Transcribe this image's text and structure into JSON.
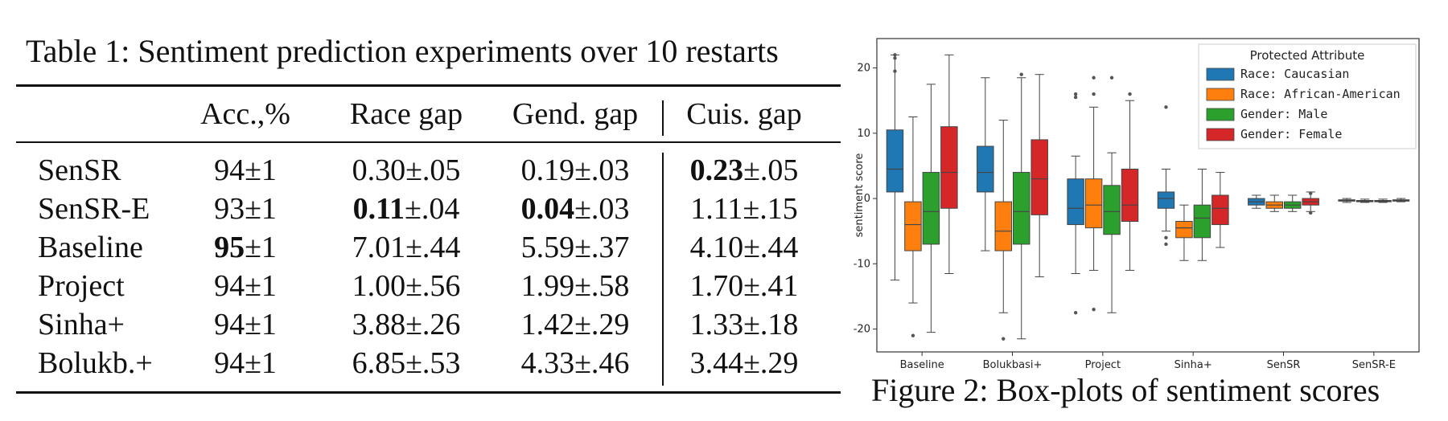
{
  "table": {
    "caption": "Table 1: Sentiment prediction experiments over 10 restarts",
    "headers": [
      "",
      "Acc.,%",
      "Race gap",
      "Gend. gap",
      "Cuis. gap"
    ],
    "rows": [
      {
        "method": "SenSR",
        "acc": {
          "b": "",
          "r": "94±1"
        },
        "race": {
          "b": "",
          "r": "0.30±.05"
        },
        "gend": {
          "b": "",
          "r": "0.19±.03"
        },
        "cuis": {
          "b": "0.23",
          "r": "±.05"
        }
      },
      {
        "method": "SenSR-E",
        "acc": {
          "b": "",
          "r": "93±1"
        },
        "race": {
          "b": "0.11",
          "r": "±.04"
        },
        "gend": {
          "b": "0.04",
          "r": "±.03"
        },
        "cuis": {
          "b": "",
          "r": "1.11±.15"
        }
      },
      {
        "method": "Baseline",
        "acc": {
          "b": "95",
          "r": "±1"
        },
        "race": {
          "b": "",
          "r": "7.01±.44"
        },
        "gend": {
          "b": "",
          "r": "5.59±.37"
        },
        "cuis": {
          "b": "",
          "r": "4.10±.44"
        }
      },
      {
        "method": "Project",
        "acc": {
          "b": "",
          "r": "94±1"
        },
        "race": {
          "b": "",
          "r": "1.00±.56"
        },
        "gend": {
          "b": "",
          "r": "1.99±.58"
        },
        "cuis": {
          "b": "",
          "r": "1.70±.41"
        }
      },
      {
        "method": "Sinha+",
        "acc": {
          "b": "",
          "r": "94±1"
        },
        "race": {
          "b": "",
          "r": "3.88±.26"
        },
        "gend": {
          "b": "",
          "r": "1.42±.29"
        },
        "cuis": {
          "b": "",
          "r": "1.33±.18"
        }
      },
      {
        "method": "Bolukb.+",
        "acc": {
          "b": "",
          "r": "94±1"
        },
        "race": {
          "b": "",
          "r": "6.85±.53"
        },
        "gend": {
          "b": "",
          "r": "4.33±.46"
        },
        "cuis": {
          "b": "",
          "r": "3.44±.29"
        }
      }
    ]
  },
  "figure": {
    "caption": "Figure 2: Box-plots of sentiment scores"
  },
  "chart_data": {
    "type": "box",
    "title": "",
    "ylabel": "sentiment score",
    "xlabel": "",
    "ylim": [
      -23.5,
      24.5
    ],
    "yticks": [
      -20,
      -10,
      0,
      10,
      20
    ],
    "categories": [
      "Baseline",
      "Bolukbasi+",
      "Project",
      "Sinha+",
      "SenSR",
      "SenSR-E"
    ],
    "legend": {
      "title": "Protected Attribute",
      "position": "top-right"
    },
    "series": [
      {
        "name": "Race: Caucasian",
        "color": "#1f77b4",
        "boxes": [
          {
            "whislo": -12.5,
            "q1": 1,
            "med": 4.5,
            "q3": 10.5,
            "whishi": 22,
            "fliers": [
              22,
              21.5,
              19.5
            ]
          },
          {
            "whislo": -8,
            "q1": 1,
            "med": 4,
            "q3": 8,
            "whishi": 18.5,
            "fliers": []
          },
          {
            "whislo": -11.5,
            "q1": -4,
            "med": -1.5,
            "q3": 3,
            "whishi": 6.5,
            "fliers": [
              16,
              15.5,
              -17.5
            ]
          },
          {
            "whislo": -5,
            "q1": -1.5,
            "med": 0,
            "q3": 1,
            "whishi": 4.5,
            "fliers": [
              14,
              -6,
              -7
            ]
          },
          {
            "whislo": -1.5,
            "q1": -1,
            "med": -0.5,
            "q3": 0,
            "whishi": 0.5,
            "fliers": []
          },
          {
            "whislo": -0.6,
            "q1": -0.4,
            "med": -0.3,
            "q3": -0.2,
            "whishi": 0,
            "fliers": []
          }
        ]
      },
      {
        "name": "Race: African-American",
        "color": "#ff7f0e",
        "boxes": [
          {
            "whislo": -16,
            "q1": -8,
            "med": -4,
            "q3": -0.5,
            "whishi": 12.5,
            "fliers": [
              -21
            ]
          },
          {
            "whislo": -17.5,
            "q1": -8,
            "med": -5,
            "q3": -0.5,
            "whishi": 12,
            "fliers": [
              -21.5
            ]
          },
          {
            "whislo": -11,
            "q1": -4.5,
            "med": -1,
            "q3": 3,
            "whishi": 14,
            "fliers": [
              18.5,
              16,
              -17
            ]
          },
          {
            "whislo": -9.5,
            "q1": -6,
            "med": -4.5,
            "q3": -3.5,
            "whishi": -1,
            "fliers": []
          },
          {
            "whislo": -2,
            "q1": -1.5,
            "med": -1,
            "q3": -0.5,
            "whishi": 0.5,
            "fliers": []
          },
          {
            "whislo": -0.6,
            "q1": -0.5,
            "med": -0.4,
            "q3": -0.3,
            "whishi": -0.1,
            "fliers": []
          }
        ]
      },
      {
        "name": "Gender: Male",
        "color": "#2ca02c",
        "boxes": [
          {
            "whislo": -20.5,
            "q1": -7,
            "med": -2,
            "q3": 4,
            "whishi": 17.5,
            "fliers": []
          },
          {
            "whislo": -21.5,
            "q1": -7,
            "med": -2,
            "q3": 4,
            "whishi": 18.5,
            "fliers": [
              19
            ]
          },
          {
            "whislo": -17.5,
            "q1": -5.5,
            "med": -2,
            "q3": 2,
            "whishi": 7,
            "fliers": [
              18.5
            ]
          },
          {
            "whislo": -9.5,
            "q1": -6,
            "med": -3,
            "q3": -1,
            "whishi": 4.5,
            "fliers": []
          },
          {
            "whislo": -2,
            "q1": -1.5,
            "med": -1,
            "q3": -0.5,
            "whishi": 0.5,
            "fliers": []
          },
          {
            "whislo": -0.6,
            "q1": -0.5,
            "med": -0.4,
            "q3": -0.3,
            "whishi": -0.1,
            "fliers": []
          }
        ]
      },
      {
        "name": "Gender: Female",
        "color": "#d62728",
        "boxes": [
          {
            "whislo": -11.5,
            "q1": -1.5,
            "med": 4,
            "q3": 11,
            "whishi": 22,
            "fliers": []
          },
          {
            "whislo": -12,
            "q1": -2.5,
            "med": 3,
            "q3": 9,
            "whishi": 19,
            "fliers": []
          },
          {
            "whislo": -11,
            "q1": -3.5,
            "med": -1,
            "q3": 4.5,
            "whishi": 15,
            "fliers": [
              16
            ]
          },
          {
            "whislo": -7.5,
            "q1": -4,
            "med": -1.5,
            "q3": 0.5,
            "whishi": 4,
            "fliers": []
          },
          {
            "whislo": -2,
            "q1": -1,
            "med": -0.5,
            "q3": 0,
            "whishi": 1,
            "fliers": [
              0.8,
              -2.2
            ]
          },
          {
            "whislo": -0.5,
            "q1": -0.4,
            "med": -0.3,
            "q3": -0.2,
            "whishi": 0,
            "fliers": []
          }
        ]
      }
    ]
  }
}
